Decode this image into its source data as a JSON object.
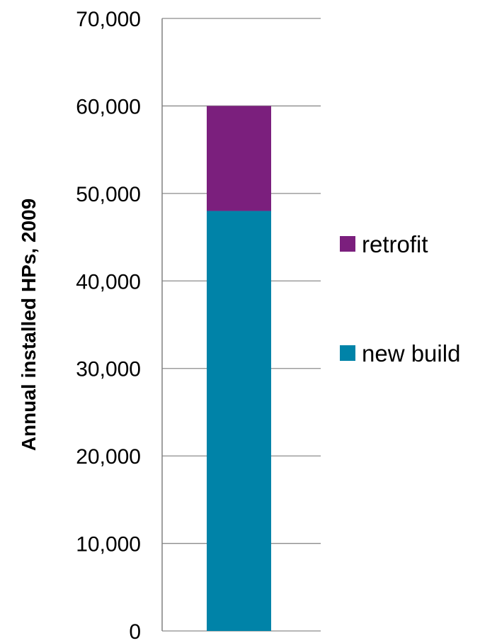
{
  "chart_data": {
    "type": "bar",
    "stacked": true,
    "title": "",
    "xlabel": "",
    "ylabel": "Annual installed HPs, 2009",
    "ylim": [
      0,
      70000
    ],
    "yticks": [
      0,
      10000,
      20000,
      30000,
      40000,
      50000,
      60000,
      70000
    ],
    "ytick_labels": [
      "0",
      "10,000",
      "20,000",
      "30,000",
      "40,000",
      "50,000",
      "60,000",
      "70,000"
    ],
    "grid": true,
    "legend_position": "right",
    "categories": [
      ""
    ],
    "series": [
      {
        "name": "new build",
        "values": [
          48000
        ],
        "color": "#0083A8"
      },
      {
        "name": "retrofit",
        "values": [
          12000
        ],
        "color": "#7B1F7D"
      }
    ],
    "legend_order": [
      "retrofit",
      "new build"
    ]
  }
}
